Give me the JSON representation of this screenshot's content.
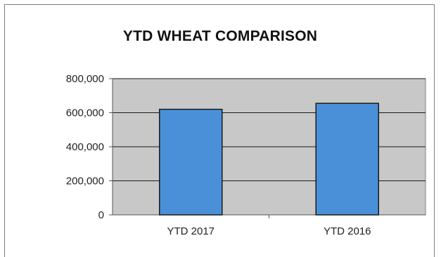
{
  "chart_data": {
    "type": "bar",
    "title": "YTD WHEAT COMPARISON",
    "categories": [
      "YTD 2017",
      "YTD 2016"
    ],
    "values": [
      620000,
      655000
    ],
    "ylim": [
      0,
      800000
    ],
    "yticks": [
      0,
      200000,
      400000,
      600000,
      800000
    ],
    "ytick_labels": [
      "0",
      "200,000",
      "400,000",
      "600,000",
      "800,000"
    ],
    "xlabel": "",
    "ylabel": "",
    "grid": true,
    "bar_color": "#4a90d9",
    "plot_background": "#c8c8c8"
  }
}
